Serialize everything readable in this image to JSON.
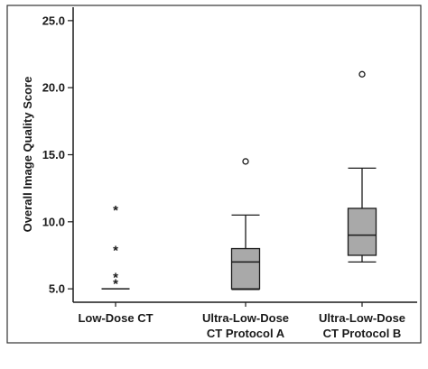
{
  "chart_data": {
    "type": "boxplot",
    "title": "",
    "xlabel": "",
    "ylabel": "Overall Image Quality Score",
    "ylim": [
      4.0,
      26.0
    ],
    "yticks": [
      "5.0",
      "10.0",
      "15.0",
      "20.0",
      "25.0"
    ],
    "grid": false,
    "categories": [
      [
        "Low-Dose CT"
      ],
      [
        "Ultra-Low-Dose",
        "CT Protocol A"
      ],
      [
        "Ultra-Low-Dose",
        "CT Protocol B"
      ]
    ],
    "boxes": [
      {
        "whisker_low": 5.0,
        "q1": 5.0,
        "median": 5.0,
        "q3": 5.0,
        "whisker_high": 5.0,
        "outliers_circle": [],
        "outliers_star": [
          11.0,
          8.0,
          6.0,
          5.5
        ]
      },
      {
        "whisker_low": 4.95,
        "q1": 5.0,
        "median": 7.0,
        "q3": 8.0,
        "whisker_high": 10.5,
        "outliers_circle": [
          14.5
        ],
        "outliers_star": []
      },
      {
        "whisker_low": 7.0,
        "q1": 7.5,
        "median": 9.0,
        "q3": 11.0,
        "whisker_high": 14.0,
        "outliers_circle": [
          21.0
        ],
        "outliers_star": []
      }
    ],
    "colors": {
      "box_fill": "#a9a9a9",
      "stroke": "#1a1a1a",
      "frame": "#333333"
    }
  }
}
